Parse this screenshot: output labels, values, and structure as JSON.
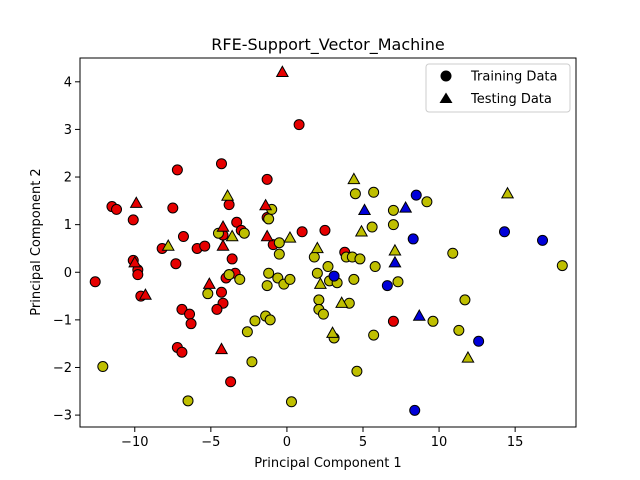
{
  "chart_data": {
    "type": "scatter",
    "title": "RFE-Support_Vector_Machine",
    "xlabel": "Principal Component 1",
    "ylabel": "Principal Component 2",
    "xlim": [
      -13.6,
      19.0
    ],
    "ylim": [
      -3.25,
      4.5
    ],
    "xticks": [
      -10,
      -5,
      0,
      5,
      10,
      15
    ],
    "yticks": [
      -3,
      -2,
      -1,
      0,
      1,
      2,
      3,
      4
    ],
    "grid": false,
    "legend": {
      "placement": "top-right",
      "entries": [
        {
          "label": "Training Data",
          "marker": "circle"
        },
        {
          "label": "Testing Data",
          "marker": "triangle"
        }
      ]
    },
    "colors": {
      "red": "#e60000",
      "yellow": "#bfbf00",
      "blue": "#0000d9"
    },
    "series": [
      {
        "marker": "circle",
        "points": [
          {
            "x": -12.6,
            "y": -0.2,
            "c": "red"
          },
          {
            "x": -11.5,
            "y": 1.38,
            "c": "red"
          },
          {
            "x": -11.2,
            "y": 1.32,
            "c": "red"
          },
          {
            "x": -10.1,
            "y": 1.1,
            "c": "red"
          },
          {
            "x": -10.1,
            "y": 0.25,
            "c": "red"
          },
          {
            "x": -9.8,
            "y": 0.05,
            "c": "red"
          },
          {
            "x": -9.8,
            "y": -0.05,
            "c": "red"
          },
          {
            "x": -9.6,
            "y": -0.5,
            "c": "red"
          },
          {
            "x": -8.2,
            "y": 0.5,
            "c": "red"
          },
          {
            "x": -7.5,
            "y": 1.35,
            "c": "red"
          },
          {
            "x": -7.2,
            "y": 2.15,
            "c": "red"
          },
          {
            "x": -7.3,
            "y": 0.18,
            "c": "red"
          },
          {
            "x": -6.8,
            "y": 0.75,
            "c": "red"
          },
          {
            "x": -6.9,
            "y": -0.78,
            "c": "red"
          },
          {
            "x": -6.4,
            "y": -0.88,
            "c": "red"
          },
          {
            "x": -6.3,
            "y": -1.08,
            "c": "red"
          },
          {
            "x": -7.2,
            "y": -1.58,
            "c": "red"
          },
          {
            "x": -6.9,
            "y": -1.68,
            "c": "red"
          },
          {
            "x": -5.9,
            "y": 0.5,
            "c": "red"
          },
          {
            "x": -5.4,
            "y": 0.55,
            "c": "red"
          },
          {
            "x": -4.3,
            "y": 2.28,
            "c": "red"
          },
          {
            "x": -4.2,
            "y": 0.78,
            "c": "red"
          },
          {
            "x": -3.8,
            "y": 1.42,
            "c": "red"
          },
          {
            "x": -3.3,
            "y": 1.05,
            "c": "red"
          },
          {
            "x": -3.0,
            "y": 0.88,
            "c": "red"
          },
          {
            "x": -3.6,
            "y": 0.28,
            "c": "red"
          },
          {
            "x": -3.8,
            "y": -0.05,
            "c": "red"
          },
          {
            "x": -3.4,
            "y": -0.02,
            "c": "red"
          },
          {
            "x": -4.0,
            "y": -0.12,
            "c": "red"
          },
          {
            "x": -4.3,
            "y": -0.42,
            "c": "red"
          },
          {
            "x": -4.2,
            "y": -0.65,
            "c": "red"
          },
          {
            "x": -4.6,
            "y": -0.78,
            "c": "red"
          },
          {
            "x": -3.7,
            "y": -2.3,
            "c": "red"
          },
          {
            "x": -1.3,
            "y": 1.95,
            "c": "red"
          },
          {
            "x": -1.3,
            "y": 1.15,
            "c": "red"
          },
          {
            "x": -0.9,
            "y": 0.58,
            "c": "red"
          },
          {
            "x": 0.8,
            "y": 3.1,
            "c": "red"
          },
          {
            "x": 1.0,
            "y": 0.85,
            "c": "red"
          },
          {
            "x": 2.5,
            "y": 0.88,
            "c": "red"
          },
          {
            "x": 3.8,
            "y": 0.42,
            "c": "red"
          },
          {
            "x": 7.0,
            "y": -1.03,
            "c": "red"
          },
          {
            "x": -12.1,
            "y": -1.98,
            "c": "yellow"
          },
          {
            "x": -6.5,
            "y": -2.7,
            "c": "yellow"
          },
          {
            "x": -5.2,
            "y": -0.45,
            "c": "yellow"
          },
          {
            "x": -4.5,
            "y": 0.82,
            "c": "yellow"
          },
          {
            "x": -3.8,
            "y": -0.05,
            "c": "yellow"
          },
          {
            "x": -3.1,
            "y": -0.15,
            "c": "yellow"
          },
          {
            "x": -2.8,
            "y": 0.82,
            "c": "yellow"
          },
          {
            "x": -2.6,
            "y": -1.25,
            "c": "yellow"
          },
          {
            "x": -2.3,
            "y": -1.88,
            "c": "yellow"
          },
          {
            "x": -2.1,
            "y": -1.02,
            "c": "yellow"
          },
          {
            "x": -1.4,
            "y": -0.92,
            "c": "yellow"
          },
          {
            "x": -1.1,
            "y": -1.0,
            "c": "yellow"
          },
          {
            "x": -1.2,
            "y": 1.12,
            "c": "yellow"
          },
          {
            "x": -1.0,
            "y": 1.32,
            "c": "yellow"
          },
          {
            "x": -1.2,
            "y": -0.02,
            "c": "yellow"
          },
          {
            "x": -1.3,
            "y": -0.28,
            "c": "yellow"
          },
          {
            "x": -0.5,
            "y": 0.62,
            "c": "yellow"
          },
          {
            "x": -0.5,
            "y": 0.38,
            "c": "yellow"
          },
          {
            "x": -0.6,
            "y": -0.12,
            "c": "yellow"
          },
          {
            "x": -0.2,
            "y": -0.25,
            "c": "yellow"
          },
          {
            "x": 0.2,
            "y": -0.15,
            "c": "yellow"
          },
          {
            "x": 0.3,
            "y": -2.72,
            "c": "yellow"
          },
          {
            "x": 1.8,
            "y": 0.32,
            "c": "yellow"
          },
          {
            "x": 2.0,
            "y": -0.02,
            "c": "yellow"
          },
          {
            "x": 2.1,
            "y": -0.58,
            "c": "yellow"
          },
          {
            "x": 2.1,
            "y": -0.78,
            "c": "yellow"
          },
          {
            "x": 2.4,
            "y": -0.88,
            "c": "yellow"
          },
          {
            "x": 2.7,
            "y": 0.12,
            "c": "yellow"
          },
          {
            "x": 2.8,
            "y": -0.18,
            "c": "yellow"
          },
          {
            "x": 3.1,
            "y": -1.38,
            "c": "yellow"
          },
          {
            "x": 3.3,
            "y": -0.22,
            "c": "yellow"
          },
          {
            "x": 3.9,
            "y": 0.32,
            "c": "yellow"
          },
          {
            "x": 4.1,
            "y": -0.65,
            "c": "yellow"
          },
          {
            "x": 4.3,
            "y": 0.32,
            "c": "yellow"
          },
          {
            "x": 4.4,
            "y": -0.15,
            "c": "yellow"
          },
          {
            "x": 4.5,
            "y": 1.65,
            "c": "yellow"
          },
          {
            "x": 4.6,
            "y": -2.08,
            "c": "yellow"
          },
          {
            "x": 4.8,
            "y": 0.28,
            "c": "yellow"
          },
          {
            "x": 5.6,
            "y": 0.95,
            "c": "yellow"
          },
          {
            "x": 5.7,
            "y": 1.68,
            "c": "yellow"
          },
          {
            "x": 5.8,
            "y": 0.12,
            "c": "yellow"
          },
          {
            "x": 5.7,
            "y": -1.32,
            "c": "yellow"
          },
          {
            "x": 7.0,
            "y": 1.0,
            "c": "yellow"
          },
          {
            "x": 7.0,
            "y": 1.3,
            "c": "yellow"
          },
          {
            "x": 7.3,
            "y": -0.2,
            "c": "yellow"
          },
          {
            "x": 9.2,
            "y": 1.48,
            "c": "yellow"
          },
          {
            "x": 9.6,
            "y": -1.03,
            "c": "yellow"
          },
          {
            "x": 10.9,
            "y": 0.4,
            "c": "yellow"
          },
          {
            "x": 11.3,
            "y": -1.22,
            "c": "yellow"
          },
          {
            "x": 11.7,
            "y": -0.58,
            "c": "yellow"
          },
          {
            "x": 18.1,
            "y": 0.14,
            "c": "yellow"
          },
          {
            "x": 3.1,
            "y": -0.08,
            "c": "blue"
          },
          {
            "x": 6.6,
            "y": -0.28,
            "c": "blue"
          },
          {
            "x": 8.3,
            "y": 0.7,
            "c": "blue"
          },
          {
            "x": 8.5,
            "y": 1.62,
            "c": "blue"
          },
          {
            "x": 8.4,
            "y": -2.9,
            "c": "blue"
          },
          {
            "x": 12.6,
            "y": -1.45,
            "c": "blue"
          },
          {
            "x": 14.3,
            "y": 0.85,
            "c": "blue"
          },
          {
            "x": 16.8,
            "y": 0.67,
            "c": "blue"
          }
        ]
      },
      {
        "marker": "triangle",
        "points": [
          {
            "x": -10.0,
            "y": 0.2,
            "c": "red"
          },
          {
            "x": -9.9,
            "y": 1.45,
            "c": "red"
          },
          {
            "x": -9.3,
            "y": -0.48,
            "c": "red"
          },
          {
            "x": -5.1,
            "y": -0.25,
            "c": "red"
          },
          {
            "x": -4.3,
            "y": -1.62,
            "c": "red"
          },
          {
            "x": -4.2,
            "y": 0.55,
            "c": "red"
          },
          {
            "x": -4.2,
            "y": 0.95,
            "c": "red"
          },
          {
            "x": -1.4,
            "y": 1.4,
            "c": "red"
          },
          {
            "x": -1.3,
            "y": 0.75,
            "c": "red"
          },
          {
            "x": -0.3,
            "y": 4.2,
            "c": "red"
          },
          {
            "x": -7.8,
            "y": 0.55,
            "c": "yellow"
          },
          {
            "x": -3.9,
            "y": 1.6,
            "c": "yellow"
          },
          {
            "x": -3.6,
            "y": 0.75,
            "c": "yellow"
          },
          {
            "x": 0.2,
            "y": 0.72,
            "c": "yellow"
          },
          {
            "x": 2.0,
            "y": 0.5,
            "c": "yellow"
          },
          {
            "x": 2.2,
            "y": -0.25,
            "c": "yellow"
          },
          {
            "x": 3.0,
            "y": -1.28,
            "c": "yellow"
          },
          {
            "x": 3.6,
            "y": -0.65,
            "c": "yellow"
          },
          {
            "x": 4.4,
            "y": 1.95,
            "c": "yellow"
          },
          {
            "x": 4.9,
            "y": 0.85,
            "c": "yellow"
          },
          {
            "x": 7.1,
            "y": 0.45,
            "c": "yellow"
          },
          {
            "x": 11.9,
            "y": -1.8,
            "c": "yellow"
          },
          {
            "x": 14.5,
            "y": 1.65,
            "c": "yellow"
          },
          {
            "x": 5.1,
            "y": 1.3,
            "c": "blue"
          },
          {
            "x": 7.1,
            "y": 0.2,
            "c": "blue"
          },
          {
            "x": 7.8,
            "y": 1.35,
            "c": "blue"
          },
          {
            "x": 8.7,
            "y": -0.92,
            "c": "blue"
          }
        ]
      }
    ]
  }
}
